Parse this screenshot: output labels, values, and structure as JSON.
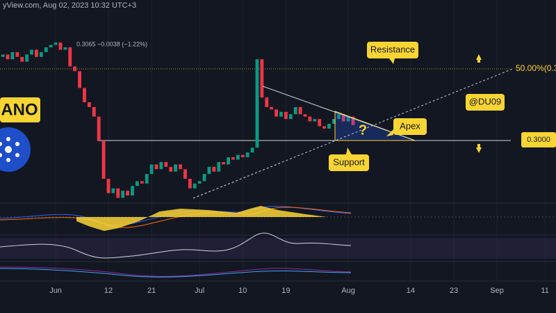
{
  "chart_data": {
    "type": "candlestick",
    "header": "yView.com, Aug 02, 2023 10:32 UTC+3",
    "ohlc_text": "0.3065 −0.0038 (−1.22%)",
    "up_color": "#089981",
    "down_color": "#f23645",
    "xlim": [
      -11.6,
      104.3
    ],
    "ylim": [
      0.2744,
      0.3588
    ],
    "xticks": [
      {
        "value": 0,
        "label": "Jun"
      },
      {
        "value": 11,
        "label": "12"
      },
      {
        "value": 20,
        "label": "21"
      },
      {
        "value": 30,
        "label": "Jul"
      },
      {
        "value": 39,
        "label": "10"
      },
      {
        "value": 48,
        "label": "19"
      },
      {
        "value": 61,
        "label": "Aug"
      },
      {
        "value": 74,
        "label": "14"
      },
      {
        "value": 83,
        "label": "23"
      },
      {
        "value": 92,
        "label": "Sep"
      },
      {
        "value": 102,
        "label": "11"
      }
    ],
    "levels": [
      {
        "label": "50.00%(0.3",
        "value": 0.33,
        "color": "#fcd535",
        "style": "dotted"
      },
      {
        "label": "0.3000",
        "value": 0.3,
        "color": "#d1d4dc",
        "style": "solid"
      }
    ],
    "x": [
      -11,
      -10,
      -9,
      -8,
      -7,
      -6,
      -5,
      -4,
      -3,
      -2,
      -1,
      0,
      1,
      2,
      3,
      4,
      5,
      6,
      7,
      8,
      9,
      10,
      11,
      12,
      13,
      14,
      15,
      16,
      17,
      18,
      19,
      20,
      21,
      22,
      23,
      24,
      25,
      26,
      27,
      28,
      29,
      30,
      31,
      32,
      33,
      34,
      35,
      36,
      37,
      38,
      39,
      40,
      41,
      42,
      43,
      44,
      45,
      46,
      47,
      48,
      49,
      50,
      51,
      52,
      53,
      54,
      55,
      56,
      57,
      58,
      59,
      60,
      61,
      62
    ],
    "open": [
      0.335,
      0.336,
      0.334,
      0.337,
      0.335,
      0.333,
      0.336,
      0.338,
      0.335,
      0.337,
      0.339,
      0.34,
      0.341,
      0.338,
      0.339,
      0.331,
      0.329,
      0.322,
      0.316,
      0.314,
      0.31,
      0.3,
      0.284,
      0.278,
      0.28,
      0.276,
      0.279,
      0.277,
      0.281,
      0.283,
      0.282,
      0.286,
      0.29,
      0.288,
      0.291,
      0.289,
      0.287,
      0.29,
      0.288,
      0.284,
      0.28,
      0.282,
      0.283,
      0.286,
      0.289,
      0.287,
      0.291,
      0.29,
      0.293,
      0.292,
      0.294,
      0.293,
      0.295,
      0.297,
      0.334,
      0.318,
      0.314,
      0.313,
      0.31,
      0.312,
      0.309,
      0.311,
      0.314,
      0.311,
      0.31,
      0.308,
      0.309,
      0.306,
      0.305,
      0.307,
      0.309,
      0.311,
      0.308,
      0.31
    ],
    "close": [
      0.336,
      0.334,
      0.337,
      0.335,
      0.333,
      0.336,
      0.338,
      0.335,
      0.337,
      0.339,
      0.34,
      0.341,
      0.338,
      0.339,
      0.331,
      0.329,
      0.322,
      0.316,
      0.314,
      0.31,
      0.3,
      0.284,
      0.278,
      0.28,
      0.276,
      0.279,
      0.277,
      0.281,
      0.283,
      0.282,
      0.286,
      0.29,
      0.288,
      0.291,
      0.289,
      0.287,
      0.29,
      0.288,
      0.284,
      0.28,
      0.282,
      0.283,
      0.286,
      0.289,
      0.287,
      0.291,
      0.29,
      0.293,
      0.292,
      0.294,
      0.293,
      0.295,
      0.297,
      0.334,
      0.318,
      0.314,
      0.313,
      0.31,
      0.312,
      0.309,
      0.311,
      0.314,
      0.311,
      0.31,
      0.308,
      0.309,
      0.306,
      0.305,
      0.307,
      0.309,
      0.311,
      0.308,
      0.31,
      0.3065
    ]
  },
  "annotations": {
    "resistance": "Resistance",
    "apex": "Apex",
    "support": "Support",
    "author": "@DU09",
    "question": "?",
    "coin": "ANO"
  }
}
